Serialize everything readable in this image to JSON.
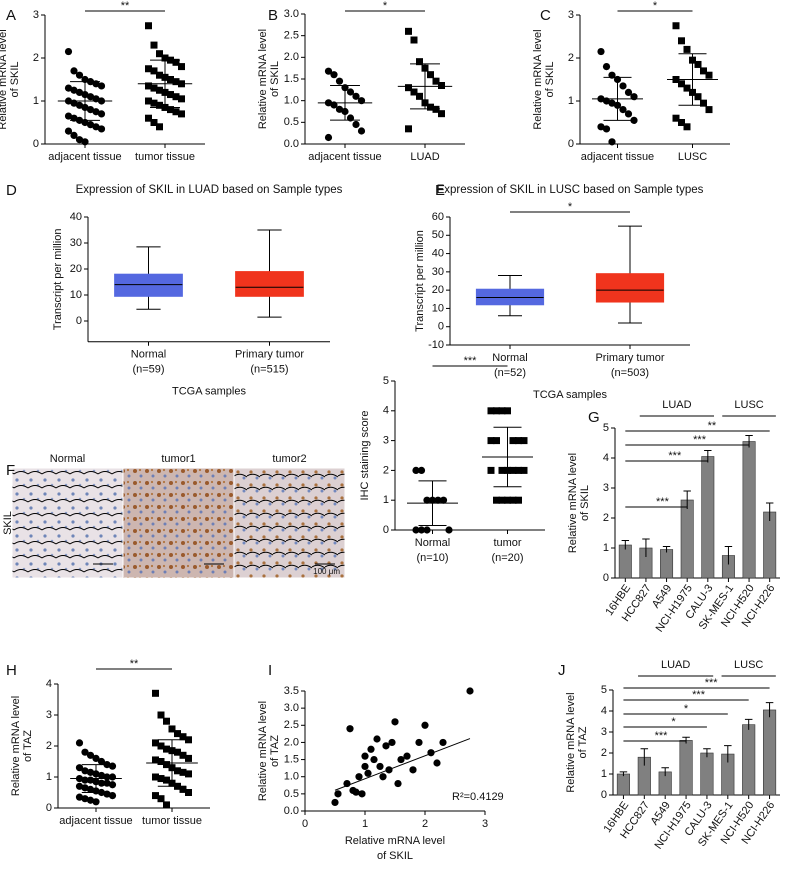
{
  "chart_data": [
    {
      "type": "dot",
      "panel": "A",
      "ylabel": [
        "Relative mRNA level",
        "of SKIL"
      ],
      "categories": [
        "adjacent tissue",
        "tumor tissue"
      ],
      "ylim": [
        0,
        3
      ],
      "yticks": [
        0,
        1,
        2,
        3
      ],
      "significance": "**",
      "groups": [
        {
          "marker": "circle",
          "mean": 1.0,
          "sd": 0.45,
          "values": [
            2.15,
            1.7,
            1.6,
            1.5,
            1.45,
            1.4,
            1.35,
            1.3,
            1.25,
            1.2,
            1.15,
            1.1,
            1.05,
            1.0,
            1.0,
            0.95,
            0.9,
            0.85,
            0.8,
            0.75,
            0.7,
            0.65,
            0.6,
            0.55,
            0.5,
            0.45,
            0.4,
            0.35,
            0.3,
            0.2,
            0.1,
            0.05
          ]
        },
        {
          "marker": "square",
          "mean": 1.4,
          "sd": 0.55,
          "values": [
            2.75,
            2.3,
            2.1,
            2.0,
            1.95,
            1.9,
            1.8,
            1.75,
            1.7,
            1.6,
            1.55,
            1.5,
            1.45,
            1.4,
            1.35,
            1.3,
            1.25,
            1.2,
            1.15,
            1.1,
            1.05,
            1.0,
            0.95,
            0.9,
            0.85,
            0.8,
            0.75,
            0.7,
            0.6,
            0.5,
            0.4
          ]
        }
      ]
    },
    {
      "type": "dot",
      "panel": "B",
      "ylabel": [
        "Relative mRNA level",
        "of SKIL"
      ],
      "categories": [
        "adjacent tissue",
        "LUAD"
      ],
      "ylim": [
        0,
        3
      ],
      "yticks": [
        {
          "value": 0,
          "label": "0.0"
        },
        {
          "value": 0.5,
          "label": "0.5"
        },
        {
          "value": 1,
          "label": "1.0"
        },
        {
          "value": 1.5,
          "label": "1.5"
        },
        {
          "value": 2,
          "label": "2.0"
        },
        {
          "value": 2.5,
          "label": "2.5"
        },
        {
          "value": 3,
          "label": "3.0"
        }
      ],
      "significance": "*",
      "groups": [
        {
          "marker": "circle",
          "mean": 0.95,
          "sd": 0.4,
          "values": [
            1.68,
            1.6,
            1.45,
            1.3,
            1.2,
            1.1,
            1.0,
            0.95,
            0.9,
            0.8,
            0.75,
            0.6,
            0.45,
            0.3,
            0.15
          ]
        },
        {
          "marker": "square",
          "mean": 1.33,
          "sd": 0.52,
          "values": [
            2.6,
            2.4,
            1.9,
            1.75,
            1.6,
            1.45,
            1.35,
            1.3,
            1.2,
            1.1,
            0.95,
            0.85,
            0.8,
            0.7,
            0.35
          ]
        }
      ]
    },
    {
      "type": "dot",
      "panel": "C",
      "ylabel": [
        "Relative mRNA level",
        "of SKIL"
      ],
      "categories": [
        "adjacent tissue",
        "LUSC"
      ],
      "ylim": [
        0,
        3
      ],
      "yticks": [
        0,
        1,
        2,
        3
      ],
      "significance": "*",
      "groups": [
        {
          "marker": "circle",
          "mean": 1.05,
          "sd": 0.5,
          "values": [
            2.15,
            1.8,
            1.6,
            1.5,
            1.35,
            1.2,
            1.1,
            1.05,
            1.0,
            0.95,
            0.9,
            0.8,
            0.7,
            0.55,
            0.4,
            0.35,
            0.05
          ]
        },
        {
          "marker": "square",
          "mean": 1.5,
          "sd": 0.6,
          "values": [
            2.75,
            2.4,
            2.2,
            1.95,
            1.85,
            1.7,
            1.6,
            1.5,
            1.4,
            1.3,
            1.2,
            1.1,
            0.95,
            0.8,
            0.6,
            0.5,
            0.4
          ]
        }
      ]
    },
    {
      "type": "box",
      "panel": "D",
      "title": "Expression of SKIL in LUAD based on Sample types",
      "ylabel": "Transcript per million",
      "xlabel": "TCGA samples",
      "categories": [
        [
          "Normal",
          "(n=59)"
        ],
        [
          "Primary tumor",
          "(n=515)"
        ]
      ],
      "colors": [
        "#5468e0",
        "#f0341d"
      ],
      "ylim": [
        -8,
        40
      ],
      "yticks": [
        0,
        10,
        20,
        30,
        40
      ],
      "boxes": [
        {
          "low": 4.5,
          "q1": 9.5,
          "median": 14,
          "q3": 18,
          "high": 28.5
        },
        {
          "low": 1.5,
          "q1": 9.5,
          "median": 13,
          "q3": 19,
          "high": 35
        }
      ]
    },
    {
      "type": "box",
      "panel": "E",
      "title": "Expression of SKIL in LUSC based on Sample types",
      "ylabel": "Transcript per million",
      "xlabel": "TCGA samples",
      "categories": [
        [
          "Normal",
          "(n=52)"
        ],
        [
          "Primary tumor",
          "(n=503)"
        ]
      ],
      "colors": [
        "#5468e0",
        "#f0341d"
      ],
      "significance": "*",
      "ylim": [
        -10,
        60
      ],
      "yticks": [
        -10,
        0,
        10,
        20,
        30,
        40,
        50,
        60
      ],
      "boxes": [
        {
          "low": 6,
          "q1": 12,
          "median": 16,
          "q3": 20.5,
          "high": 28
        },
        {
          "low": 2,
          "q1": 13.5,
          "median": 20,
          "q3": 29,
          "high": 55
        }
      ]
    },
    {
      "type": "micrographs",
      "panel": "F",
      "row_label": "SKIL",
      "images": [
        "Normal",
        "tumor1",
        "tumor2"
      ],
      "scale_bar": "100 μm"
    },
    {
      "type": "dot",
      "ylabel": "IHC staining score",
      "categories": [
        [
          "Normal",
          "(n=10)"
        ],
        [
          "tumor",
          "(n=20)"
        ]
      ],
      "ylim": [
        0,
        5
      ],
      "yticks": [
        0,
        1,
        2,
        3,
        4,
        5
      ],
      "significance": "***",
      "groups": [
        {
          "marker": "circle",
          "mean": 0.9,
          "sd": 0.75,
          "values": [
            2,
            2,
            1,
            1,
            1,
            1,
            0,
            0,
            0,
            0
          ]
        },
        {
          "marker": "square",
          "mean": 2.45,
          "sd": 1.0,
          "values": [
            4,
            4,
            4,
            4,
            3,
            3,
            3,
            3,
            3,
            2,
            2,
            2,
            2,
            2,
            2,
            1,
            1,
            1,
            1,
            1
          ]
        }
      ]
    },
    {
      "type": "bar",
      "panel": "G",
      "ylabel": [
        "Relative mRNA level",
        "of SKIL"
      ],
      "color": "#808080",
      "categories": [
        "16HBE",
        "HCC827",
        "A549",
        "NCI-H1975",
        "CALU-3",
        "SK-MES-1",
        "NCI-H520",
        "NCI-H226"
      ],
      "values": [
        1.1,
        1.0,
        0.95,
        2.6,
        4.05,
        0.75,
        4.55,
        2.2
      ],
      "errors": [
        0.15,
        0.3,
        0.1,
        0.3,
        0.2,
        0.3,
        0.2,
        0.3
      ],
      "ylim": [
        0,
        5
      ],
      "yticks": [
        0,
        1,
        2,
        3,
        4,
        5
      ],
      "groups": [
        {
          "label": "LUAD",
          "from": 1,
          "to": 4
        },
        {
          "label": "LUSC",
          "from": 5,
          "to": 7
        }
      ],
      "comparisons": [
        {
          "label": "**",
          "to": 7
        },
        {
          "label": "***",
          "to": 6
        },
        {
          "label": "***",
          "to": 4
        },
        {
          "label": "***",
          "to": 3
        }
      ]
    },
    {
      "type": "dot",
      "panel": "H",
      "ylabel": [
        "Relative mRNA level",
        "of TAZ"
      ],
      "categories": [
        "adjacent tissue",
        "tumor tissue"
      ],
      "ylim": [
        0,
        4
      ],
      "yticks": [
        0,
        1,
        2,
        3,
        4
      ],
      "significance": "**",
      "groups": [
        {
          "marker": "circle",
          "mean": 0.95,
          "sd": 0.45,
          "values": [
            2.1,
            1.8,
            1.7,
            1.6,
            1.5,
            1.4,
            1.35,
            1.3,
            1.2,
            1.15,
            1.1,
            1.05,
            1.0,
            1.0,
            0.95,
            0.9,
            0.9,
            0.85,
            0.8,
            0.8,
            0.75,
            0.7,
            0.65,
            0.6,
            0.55,
            0.5,
            0.45,
            0.4,
            0.35,
            0.3,
            0.25,
            0.2
          ]
        },
        {
          "marker": "square",
          "mean": 1.45,
          "sd": 0.75,
          "values": [
            3.7,
            3.0,
            2.8,
            2.55,
            2.4,
            2.3,
            2.2,
            2.1,
            2.0,
            1.9,
            1.85,
            1.8,
            1.7,
            1.6,
            1.55,
            1.5,
            1.4,
            1.3,
            1.2,
            1.15,
            1.1,
            1.0,
            0.95,
            0.9,
            0.8,
            0.7,
            0.6,
            0.5,
            0.4,
            0.3,
            0.1
          ]
        }
      ]
    },
    {
      "type": "scatter",
      "panel": "I",
      "xlabel": [
        "Relative mRNA level",
        "of SKIL"
      ],
      "ylabel": [
        "Relative mRNA level",
        "of TAZ"
      ],
      "annotation": "R²=0.4129",
      "fit": {
        "slope": 0.67,
        "intercept": 0.27
      },
      "xlim": [
        0,
        3
      ],
      "xticks": [
        0,
        1,
        2,
        3
      ],
      "ylim": [
        0,
        3.5
      ],
      "yticks": [
        {
          "value": 0,
          "label": "0.0"
        },
        {
          "value": 0.5,
          "label": "0.5"
        },
        {
          "value": 1,
          "label": "1.0"
        },
        {
          "value": 1.5,
          "label": "1.5"
        },
        {
          "value": 2,
          "label": "2.0"
        },
        {
          "value": 2.5,
          "label": "2.5"
        },
        {
          "value": 3,
          "label": "3.0"
        },
        {
          "value": 3.5,
          "label": "3.5"
        }
      ],
      "x": [
        0.5,
        0.55,
        0.7,
        0.75,
        0.8,
        0.85,
        0.9,
        0.95,
        1.0,
        1.0,
        1.05,
        1.1,
        1.15,
        1.2,
        1.25,
        1.3,
        1.35,
        1.4,
        1.45,
        1.5,
        1.55,
        1.6,
        1.7,
        1.8,
        1.9,
        2.0,
        2.1,
        2.2,
        2.3,
        2.75
      ],
      "y": [
        0.25,
        0.5,
        0.8,
        2.4,
        0.6,
        0.55,
        1.0,
        0.5,
        1.3,
        1.6,
        1.1,
        1.8,
        1.5,
        2.1,
        1.3,
        1.0,
        1.9,
        1.2,
        2.0,
        2.6,
        0.8,
        1.5,
        1.6,
        1.2,
        2.0,
        2.5,
        1.7,
        1.4,
        2.0,
        3.5
      ]
    },
    {
      "type": "bar",
      "panel": "J",
      "ylabel": [
        "Relative mRNA level",
        "of TAZ"
      ],
      "color": "#808080",
      "categories": [
        "16HBE",
        "HCC827",
        "A549",
        "NCI-H1975",
        "CALU-3",
        "SK-MES-1",
        "NCI-H520",
        "NCI-H226"
      ],
      "values": [
        1.0,
        1.8,
        1.1,
        2.6,
        2.0,
        1.95,
        3.35,
        4.05
      ],
      "errors": [
        0.1,
        0.4,
        0.2,
        0.15,
        0.2,
        0.4,
        0.25,
        0.35
      ],
      "ylim": [
        0,
        5
      ],
      "yticks": [
        0,
        1,
        2,
        3,
        4,
        5
      ],
      "groups": [
        {
          "label": "LUAD",
          "from": 1,
          "to": 4
        },
        {
          "label": "LUSC",
          "from": 5,
          "to": 7
        }
      ],
      "comparisons": [
        {
          "label": "***",
          "to": 7
        },
        {
          "label": "***",
          "to": 6
        },
        {
          "label": "*",
          "to": 5
        },
        {
          "label": "*",
          "to": 4
        },
        {
          "label": "***",
          "to": 3
        }
      ]
    }
  ]
}
